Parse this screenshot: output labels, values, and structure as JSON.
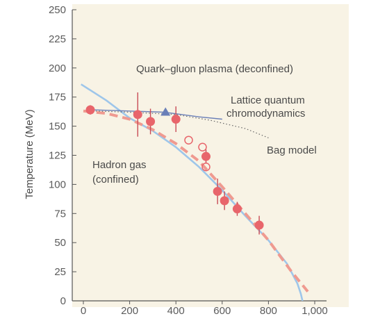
{
  "chart_data": {
    "type": "scatter",
    "ylabel": "Temperature (MeV)",
    "xlabel": "",
    "xlim": [
      0,
      1000
    ],
    "ylim": [
      0,
      250
    ],
    "x_ticks": [
      "0",
      "200",
      "400",
      "600",
      "800",
      "1,000"
    ],
    "y_ticks": [
      "0",
      "25",
      "50",
      "75",
      "100",
      "125",
      "150",
      "175",
      "200",
      "225",
      "250"
    ],
    "regions": [
      {
        "label": "Quark–gluon plasma (deconfined)"
      },
      {
        "label_lines": [
          "Hadron gas",
          "(confined)"
        ]
      }
    ],
    "annotations": [
      {
        "lines": [
          "Lattice quantum",
          "chromodynamics"
        ]
      },
      {
        "lines": [
          "Bag model"
        ]
      }
    ],
    "colors": {
      "background": "#f8f3e5",
      "theory_curve": "#9ec6ea",
      "data_filled": "#e8656b",
      "data_hollow": "#e8656b",
      "dashed_fit": "#ef9a90",
      "lattice": "#6a7fb8",
      "bag_model": "#666666"
    },
    "series": [
      {
        "style": "filled-circle",
        "points": [
          {
            "x": 30,
            "y": 164,
            "err": 4
          },
          {
            "x": 235,
            "y": 160,
            "err": 19
          },
          {
            "x": 290,
            "y": 154,
            "err": 11
          },
          {
            "x": 400,
            "y": 156,
            "err": 11
          },
          {
            "x": 530,
            "y": 124,
            "err": 6
          },
          {
            "x": 580,
            "y": 94,
            "err": 11
          },
          {
            "x": 610,
            "y": 86,
            "err": 8
          },
          {
            "x": 665,
            "y": 79,
            "err": 6
          },
          {
            "x": 760,
            "y": 65,
            "err": 8
          }
        ]
      },
      {
        "style": "hollow-circle",
        "points": [
          {
            "x": 455,
            "y": 138
          },
          {
            "x": 515,
            "y": 132
          },
          {
            "x": 530,
            "y": 115
          }
        ]
      },
      {
        "style": "triangle",
        "points": [
          {
            "x": 355,
            "y": 162
          }
        ]
      },
      {
        "style": "solid-curve",
        "points": [
          {
            "x": -10,
            "y": 186
          },
          {
            "x": 100,
            "y": 172
          },
          {
            "x": 200,
            "y": 157
          },
          {
            "x": 300,
            "y": 146
          },
          {
            "x": 400,
            "y": 132
          },
          {
            "x": 500,
            "y": 115
          },
          {
            "x": 600,
            "y": 95
          },
          {
            "x": 700,
            "y": 73
          },
          {
            "x": 800,
            "y": 52
          },
          {
            "x": 880,
            "y": 32
          },
          {
            "x": 925,
            "y": 15
          },
          {
            "x": 940,
            "y": 6
          },
          {
            "x": 947,
            "y": 0
          }
        ]
      },
      {
        "style": "dashed-fit",
        "points": [
          {
            "x": 0,
            "y": 163
          },
          {
            "x": 100,
            "y": 161
          },
          {
            "x": 200,
            "y": 156
          },
          {
            "x": 300,
            "y": 147
          },
          {
            "x": 400,
            "y": 135
          },
          {
            "x": 500,
            "y": 120
          },
          {
            "x": 600,
            "y": 98
          },
          {
            "x": 700,
            "y": 75
          },
          {
            "x": 800,
            "y": 52
          },
          {
            "x": 900,
            "y": 25
          },
          {
            "x": 970,
            "y": 8
          }
        ]
      },
      {
        "style": "lattice-line",
        "points": [
          {
            "x": 40,
            "y": 164
          },
          {
            "x": 200,
            "y": 163
          },
          {
            "x": 350,
            "y": 162
          },
          {
            "x": 500,
            "y": 158
          },
          {
            "x": 600,
            "y": 156
          }
        ]
      },
      {
        "style": "bag-model-dotted",
        "points": [
          {
            "x": 40,
            "y": 163
          },
          {
            "x": 200,
            "y": 162
          },
          {
            "x": 400,
            "y": 160
          },
          {
            "x": 550,
            "y": 155
          },
          {
            "x": 700,
            "y": 148
          },
          {
            "x": 800,
            "y": 140
          }
        ]
      }
    ]
  }
}
